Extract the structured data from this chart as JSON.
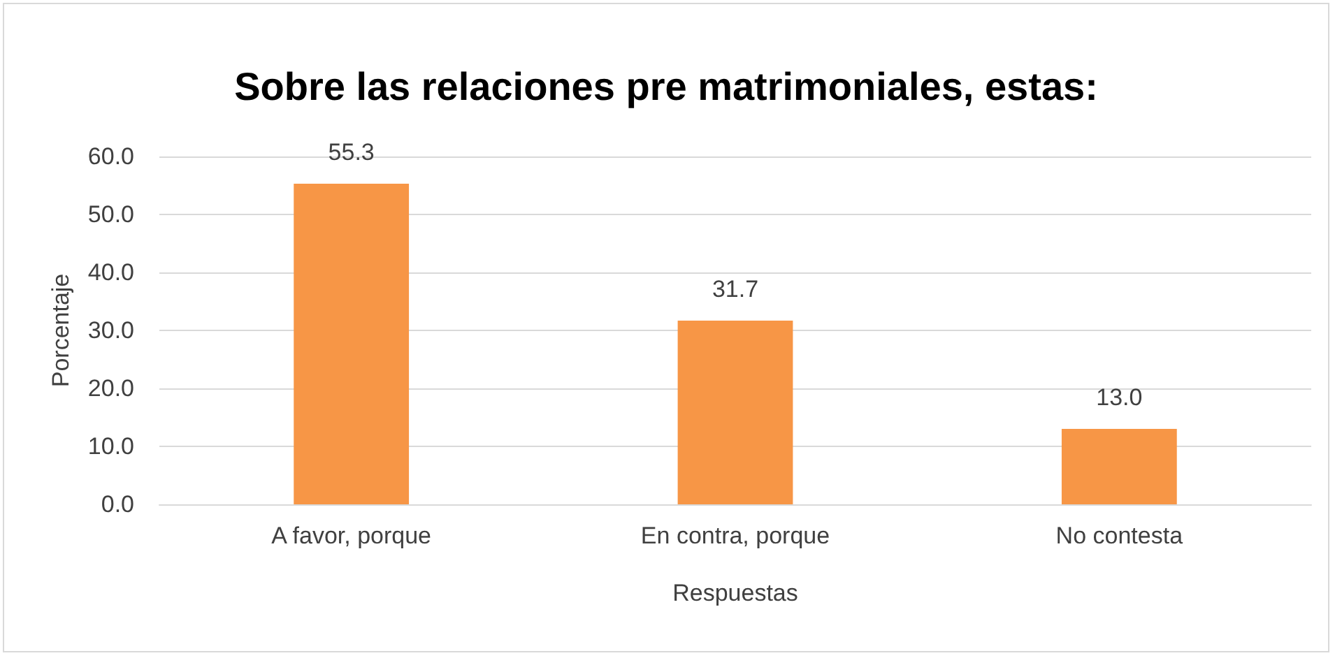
{
  "chart_data": {
    "type": "bar",
    "title": "Sobre las relaciones pre matrimoniales, estas:",
    "xlabel": "Respuestas",
    "ylabel": "Porcentaje",
    "categories": [
      "A favor, porque",
      "En contra, porque",
      "No contesta"
    ],
    "values": [
      55.3,
      31.7,
      13.0
    ],
    "color": "#f79646",
    "value_labels": [
      "55.3",
      "31.7",
      "13.0"
    ],
    "ylim": [
      0,
      60
    ],
    "yticks": [
      {
        "value": 0,
        "label": "0.0"
      },
      {
        "value": 10,
        "label": "10.0"
      },
      {
        "value": 20,
        "label": "20.0"
      },
      {
        "value": 30,
        "label": "30.0"
      },
      {
        "value": 40,
        "label": "40.0"
      },
      {
        "value": 50,
        "label": "50.0"
      },
      {
        "value": 60,
        "label": "60.0"
      }
    ],
    "grid": "y"
  }
}
